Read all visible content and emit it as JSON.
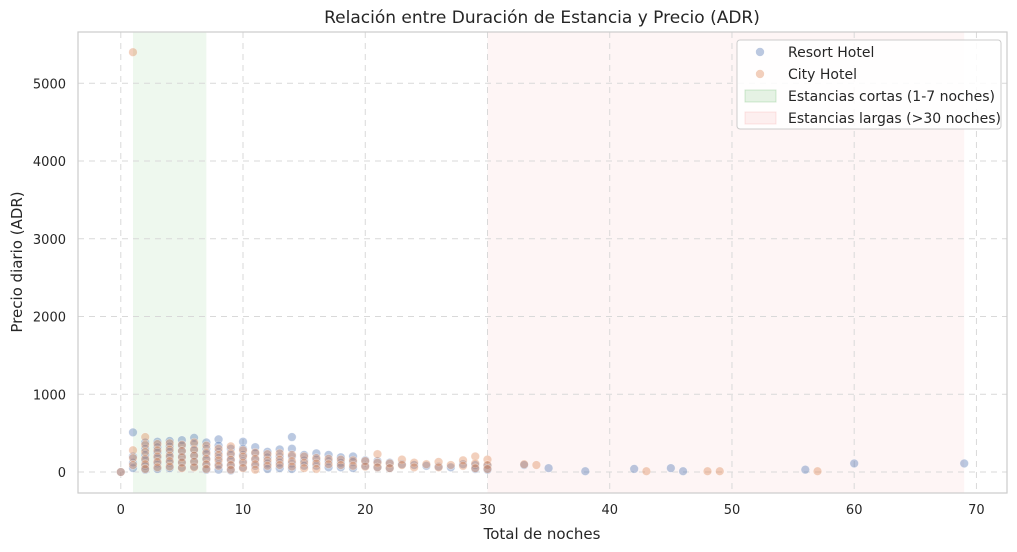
{
  "chart_data": {
    "type": "scatter",
    "title": "Relación entre Duración de Estancia y Precio (ADR)",
    "xlabel": "Total de noches",
    "ylabel": "Precio diario (ADR)",
    "xlim": [
      -3.5,
      72.5
    ],
    "ylim": [
      -270,
      5660
    ],
    "xticks": [
      0,
      10,
      20,
      30,
      40,
      50,
      60,
      70
    ],
    "yticks": [
      0,
      1000,
      2000,
      3000,
      4000,
      5000
    ],
    "grid": true,
    "legend_position": "top-right",
    "shaded_regions": [
      {
        "name": "Estancias cortas (1-7 noches)",
        "x_start": 1,
        "x_end": 7,
        "color": "#2ca02c"
      },
      {
        "name": "Estancias largas (>30 noches)",
        "x_start": 30,
        "x_end": 69,
        "color": "#f08080"
      }
    ],
    "series": [
      {
        "name": "Resort Hotel",
        "color": "#4c72b0",
        "points": [
          [
            0,
            0
          ],
          [
            1,
            510
          ],
          [
            1,
            50
          ],
          [
            1,
            120
          ],
          [
            1,
            200
          ],
          [
            2,
            380
          ],
          [
            2,
            300
          ],
          [
            2,
            220
          ],
          [
            2,
            150
          ],
          [
            2,
            80
          ],
          [
            2,
            30
          ],
          [
            3,
            390
          ],
          [
            3,
            320
          ],
          [
            3,
            250
          ],
          [
            3,
            180
          ],
          [
            3,
            110
          ],
          [
            3,
            40
          ],
          [
            4,
            400
          ],
          [
            4,
            330
          ],
          [
            4,
            260
          ],
          [
            4,
            190
          ],
          [
            4,
            120
          ],
          [
            4,
            50
          ],
          [
            5,
            410
          ],
          [
            5,
            340
          ],
          [
            5,
            270
          ],
          [
            5,
            200
          ],
          [
            5,
            130
          ],
          [
            5,
            60
          ],
          [
            6,
            440
          ],
          [
            6,
            360
          ],
          [
            6,
            280
          ],
          [
            6,
            210
          ],
          [
            6,
            140
          ],
          [
            6,
            70
          ],
          [
            7,
            380
          ],
          [
            7,
            300
          ],
          [
            7,
            230
          ],
          [
            7,
            160
          ],
          [
            7,
            90
          ],
          [
            7,
            30
          ],
          [
            8,
            420
          ],
          [
            8,
            340
          ],
          [
            8,
            260
          ],
          [
            8,
            180
          ],
          [
            8,
            100
          ],
          [
            8,
            30
          ],
          [
            9,
            300
          ],
          [
            9,
            220
          ],
          [
            9,
            150
          ],
          [
            9,
            80
          ],
          [
            9,
            20
          ],
          [
            10,
            390
          ],
          [
            10,
            300
          ],
          [
            10,
            220
          ],
          [
            10,
            140
          ],
          [
            10,
            60
          ],
          [
            11,
            320
          ],
          [
            11,
            240
          ],
          [
            11,
            160
          ],
          [
            11,
            80
          ],
          [
            12,
            260
          ],
          [
            12,
            190
          ],
          [
            12,
            110
          ],
          [
            12,
            40
          ],
          [
            13,
            290
          ],
          [
            13,
            200
          ],
          [
            13,
            120
          ],
          [
            13,
            50
          ],
          [
            14,
            450
          ],
          [
            14,
            300
          ],
          [
            14,
            200
          ],
          [
            14,
            110
          ],
          [
            14,
            40
          ],
          [
            15,
            220
          ],
          [
            15,
            150
          ],
          [
            15,
            80
          ],
          [
            16,
            240
          ],
          [
            16,
            160
          ],
          [
            16,
            80
          ],
          [
            17,
            220
          ],
          [
            17,
            140
          ],
          [
            17,
            60
          ],
          [
            18,
            190
          ],
          [
            18,
            120
          ],
          [
            18,
            60
          ],
          [
            19,
            200
          ],
          [
            19,
            130
          ],
          [
            19,
            50
          ],
          [
            20,
            150
          ],
          [
            20,
            80
          ],
          [
            21,
            140
          ],
          [
            21,
            60
          ],
          [
            22,
            120
          ],
          [
            22,
            50
          ],
          [
            23,
            100
          ],
          [
            24,
            90
          ],
          [
            25,
            80
          ],
          [
            26,
            70
          ],
          [
            27,
            60
          ],
          [
            28,
            100
          ],
          [
            29,
            90
          ],
          [
            29,
            40
          ],
          [
            30,
            80
          ],
          [
            30,
            30
          ],
          [
            33,
            90
          ],
          [
            35,
            50
          ],
          [
            38,
            10
          ],
          [
            42,
            40
          ],
          [
            45,
            50
          ],
          [
            46,
            10
          ],
          [
            56,
            30
          ],
          [
            60,
            110
          ],
          [
            69,
            110
          ]
        ]
      },
      {
        "name": "City Hotel",
        "color": "#dd8452",
        "points": [
          [
            0,
            0
          ],
          [
            1,
            5400
          ],
          [
            1,
            280
          ],
          [
            1,
            180
          ],
          [
            1,
            90
          ],
          [
            2,
            450
          ],
          [
            2,
            350
          ],
          [
            2,
            260
          ],
          [
            2,
            170
          ],
          [
            2,
            100
          ],
          [
            2,
            40
          ],
          [
            3,
            360
          ],
          [
            3,
            280
          ],
          [
            3,
            200
          ],
          [
            3,
            130
          ],
          [
            3,
            60
          ],
          [
            4,
            370
          ],
          [
            4,
            290
          ],
          [
            4,
            210
          ],
          [
            4,
            140
          ],
          [
            4,
            70
          ],
          [
            5,
            350
          ],
          [
            5,
            270
          ],
          [
            5,
            190
          ],
          [
            5,
            120
          ],
          [
            5,
            50
          ],
          [
            6,
            380
          ],
          [
            6,
            290
          ],
          [
            6,
            210
          ],
          [
            6,
            130
          ],
          [
            6,
            60
          ],
          [
            7,
            340
          ],
          [
            7,
            250
          ],
          [
            7,
            170
          ],
          [
            7,
            100
          ],
          [
            7,
            40
          ],
          [
            8,
            300
          ],
          [
            8,
            220
          ],
          [
            8,
            150
          ],
          [
            8,
            80
          ],
          [
            9,
            330
          ],
          [
            9,
            240
          ],
          [
            9,
            160
          ],
          [
            9,
            90
          ],
          [
            9,
            30
          ],
          [
            10,
            280
          ],
          [
            10,
            200
          ],
          [
            10,
            120
          ],
          [
            10,
            50
          ],
          [
            11,
            250
          ],
          [
            11,
            170
          ],
          [
            11,
            100
          ],
          [
            11,
            30
          ],
          [
            12,
            230
          ],
          [
            12,
            150
          ],
          [
            12,
            80
          ],
          [
            13,
            240
          ],
          [
            13,
            160
          ],
          [
            13,
            90
          ],
          [
            14,
            220
          ],
          [
            14,
            140
          ],
          [
            14,
            70
          ],
          [
            15,
            200
          ],
          [
            15,
            120
          ],
          [
            15,
            50
          ],
          [
            16,
            180
          ],
          [
            16,
            110
          ],
          [
            16,
            40
          ],
          [
            17,
            170
          ],
          [
            17,
            100
          ],
          [
            18,
            160
          ],
          [
            18,
            90
          ],
          [
            19,
            150
          ],
          [
            19,
            80
          ],
          [
            20,
            140
          ],
          [
            20,
            70
          ],
          [
            21,
            230
          ],
          [
            21,
            120
          ],
          [
            21,
            60
          ],
          [
            22,
            110
          ],
          [
            22,
            50
          ],
          [
            23,
            160
          ],
          [
            23,
            90
          ],
          [
            24,
            120
          ],
          [
            24,
            60
          ],
          [
            25,
            100
          ],
          [
            26,
            130
          ],
          [
            26,
            60
          ],
          [
            27,
            90
          ],
          [
            28,
            150
          ],
          [
            28,
            80
          ],
          [
            29,
            200
          ],
          [
            29,
            110
          ],
          [
            29,
            50
          ],
          [
            30,
            160
          ],
          [
            30,
            90
          ],
          [
            30,
            40
          ],
          [
            33,
            100
          ],
          [
            34,
            90
          ],
          [
            43,
            10
          ],
          [
            48,
            10
          ],
          [
            49,
            10
          ],
          [
            57,
            10
          ]
        ]
      }
    ]
  }
}
